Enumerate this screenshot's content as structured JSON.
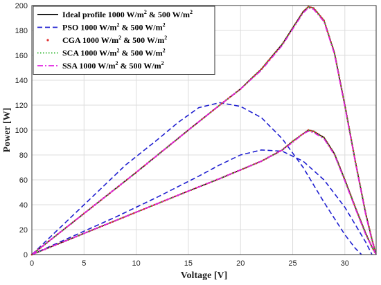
{
  "chart_data": {
    "type": "line",
    "title": "",
    "xlabel": "Voltage [V]",
    "ylabel": "Power [W]",
    "xlim": [
      0,
      33
    ],
    "ylim": [
      0,
      200
    ],
    "xticks": [
      0,
      5,
      10,
      15,
      20,
      25,
      30
    ],
    "yticks": [
      0,
      20,
      40,
      60,
      80,
      100,
      120,
      140,
      160,
      180,
      200
    ],
    "grid": true,
    "legend_position": "top-left",
    "legend": [
      {
        "text": "Ideal profile 1000 W/m",
        "sup": "2",
        "tail": " & 500 W/m",
        "sup2": "2",
        "color": "#000000",
        "style": "solid",
        "marker": "none"
      },
      {
        "text": "PSO 1000 W/m",
        "sup": "2",
        "tail": " & 500 W/m",
        "sup2": "2",
        "color": "#1f1fd0",
        "style": "dashed",
        "marker": "none"
      },
      {
        "text": "CGA 1000 W/m",
        "sup": "2",
        "tail": " & 500 W/m",
        "sup2": "2",
        "color": "#e03030",
        "style": "none",
        "marker": "dot"
      },
      {
        "text": "SCA 1000 W/m",
        "sup": "2",
        "tail": " & 500 W/m",
        "sup2": "2",
        "color": "#20b020",
        "style": "dotted",
        "marker": "none"
      },
      {
        "text": "SSA 1000 W/m",
        "sup": "2",
        "tail": " & 500 W/m",
        "sup2": "2",
        "color": "#e020e0",
        "style": "dashdot",
        "marker": "none"
      }
    ],
    "series": [
      {
        "name": "Ideal 1000",
        "color": "#000000",
        "style": "solid",
        "width": 1.6,
        "x": [
          0,
          5,
          10,
          15,
          18,
          20,
          22,
          24,
          25,
          26,
          26.5,
          27,
          28,
          29,
          30,
          31,
          32,
          32.6,
          33
        ],
        "y": [
          0,
          33,
          66,
          100,
          120,
          133,
          149,
          169,
          182,
          195,
          199,
          198,
          188,
          162,
          120,
          75,
          33,
          12,
          0
        ]
      },
      {
        "name": "Ideal 500",
        "color": "#000000",
        "style": "solid",
        "width": 1.6,
        "x": [
          0,
          5,
          10,
          15,
          18,
          20,
          22,
          24,
          25,
          26,
          26.5,
          27,
          28,
          29,
          30,
          31,
          32,
          32.6,
          33
        ],
        "y": [
          0,
          17,
          34,
          51,
          61,
          68,
          75,
          84,
          91,
          97,
          100,
          99,
          94,
          81,
          60,
          38,
          17,
          6,
          0
        ]
      },
      {
        "name": "PSO 1000",
        "color": "#1f1fd0",
        "style": "dashed",
        "width": 1.6,
        "x": [
          0,
          3,
          6,
          9,
          12,
          14,
          16,
          18,
          20,
          22,
          24,
          26,
          28,
          30,
          31,
          31.6
        ],
        "y": [
          0,
          24,
          48,
          72,
          92,
          106,
          118,
          122,
          119,
          110,
          93,
          70,
          42,
          16,
          5,
          0
        ]
      },
      {
        "name": "PSO 500",
        "color": "#1f1fd0",
        "style": "dashed",
        "width": 1.6,
        "x": [
          0,
          4,
          8,
          12,
          16,
          18,
          20,
          22,
          24,
          26,
          28,
          30,
          31,
          32,
          32.6
        ],
        "y": [
          0,
          15,
          30,
          46,
          63,
          72,
          80,
          84,
          83,
          75,
          60,
          38,
          24,
          10,
          0
        ]
      },
      {
        "name": "CGA 1000",
        "color": "#e03030",
        "style": "dot",
        "width": 1.2,
        "x": [
          0,
          5,
          10,
          15,
          18,
          20,
          22,
          24,
          25,
          26,
          26.5,
          27,
          28,
          29,
          30,
          31,
          32,
          32.6,
          33
        ],
        "y": [
          0,
          33,
          66,
          100,
          120,
          133,
          149,
          169,
          182,
          195,
          199,
          198,
          188,
          162,
          120,
          75,
          33,
          12,
          0
        ]
      },
      {
        "name": "CGA 500",
        "color": "#e03030",
        "style": "dot",
        "width": 1.2,
        "x": [
          0,
          5,
          10,
          15,
          18,
          20,
          22,
          24,
          25,
          26,
          26.5,
          27,
          28,
          29,
          30,
          31,
          32,
          32.6,
          33
        ],
        "y": [
          0,
          17,
          34,
          51,
          61,
          68,
          75,
          84,
          91,
          97,
          100,
          99,
          94,
          81,
          60,
          38,
          17,
          6,
          0
        ]
      },
      {
        "name": "SCA 1000",
        "color": "#20b020",
        "style": "dotted",
        "width": 1.6,
        "x": [
          0,
          5,
          10,
          15,
          18,
          20,
          22,
          24,
          25,
          26,
          26.5,
          27,
          28,
          29,
          30,
          31,
          32,
          32.6,
          33
        ],
        "y": [
          0,
          33,
          66,
          100,
          120,
          133,
          149,
          169,
          182,
          195,
          199,
          198,
          188,
          162,
          120,
          75,
          33,
          12,
          0
        ]
      },
      {
        "name": "SCA 500",
        "color": "#20b020",
        "style": "dotted",
        "width": 1.6,
        "x": [
          0,
          5,
          10,
          15,
          18,
          20,
          22,
          24,
          25,
          26,
          26.5,
          27,
          28,
          29,
          30,
          31,
          32,
          32.6,
          33
        ],
        "y": [
          0,
          17,
          34,
          51,
          61,
          68,
          75,
          84,
          91,
          97,
          100,
          99,
          94,
          81,
          60,
          38,
          17,
          6,
          0
        ]
      },
      {
        "name": "SSA 1000",
        "color": "#e020e0",
        "style": "dashdot",
        "width": 1.6,
        "x": [
          0,
          5,
          10,
          15,
          18,
          20,
          22,
          24,
          25,
          26,
          26.5,
          27,
          28,
          29,
          30,
          31,
          32,
          32.6,
          33
        ],
        "y": [
          0,
          33,
          66,
          100,
          120,
          133,
          148,
          168,
          181,
          194,
          198,
          197,
          187,
          161,
          119,
          74,
          32,
          11,
          0
        ]
      },
      {
        "name": "SSA 500",
        "color": "#e020e0",
        "style": "dashdot",
        "width": 1.6,
        "x": [
          0,
          5,
          10,
          15,
          18,
          20,
          22,
          24,
          25,
          26,
          26.5,
          27,
          28,
          29,
          30,
          31,
          32,
          32.6,
          33
        ],
        "y": [
          0,
          17,
          34,
          51,
          61,
          68,
          75,
          84,
          90,
          97,
          99,
          98,
          93,
          80,
          59,
          37,
          16,
          6,
          0
        ]
      }
    ]
  }
}
